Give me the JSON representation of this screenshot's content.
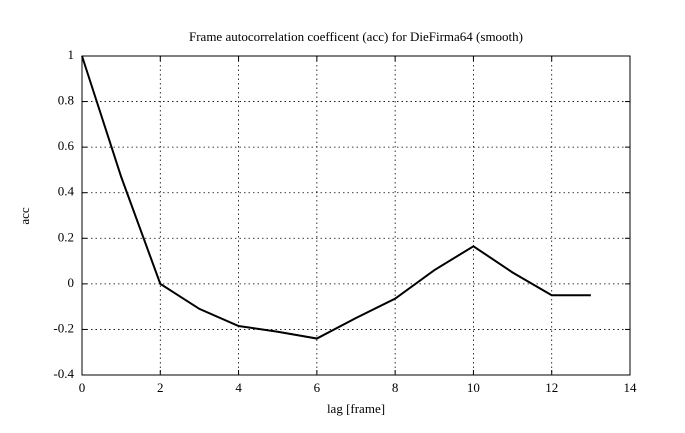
{
  "chart_data": {
    "type": "line",
    "title": "Frame autocorrelation coefficent (acc) for DieFirma64 (smooth)",
    "x_label": "lag [frame]",
    "y_label": "acc",
    "x": [
      0,
      1,
      2,
      3,
      4,
      5,
      6,
      7,
      8,
      9,
      10,
      11,
      12,
      13
    ],
    "series": [
      {
        "color": "#000000",
        "values": [
          1,
          0.47,
          0.0,
          -0.11,
          -0.185,
          -0.21,
          -0.24,
          -0.15,
          -0.065,
          0.06,
          0.165,
          0.05,
          -0.05,
          -0.05
        ]
      }
    ],
    "xlim": [
      0,
      14
    ],
    "xticks": [
      0,
      2,
      4,
      6,
      8,
      10,
      12,
      14
    ],
    "ylim": [
      -0.4,
      1
    ],
    "yticks": [
      -0.4,
      -0.2,
      0,
      0.2,
      0.4,
      0.6,
      0.8,
      1
    ],
    "grid": true
  }
}
